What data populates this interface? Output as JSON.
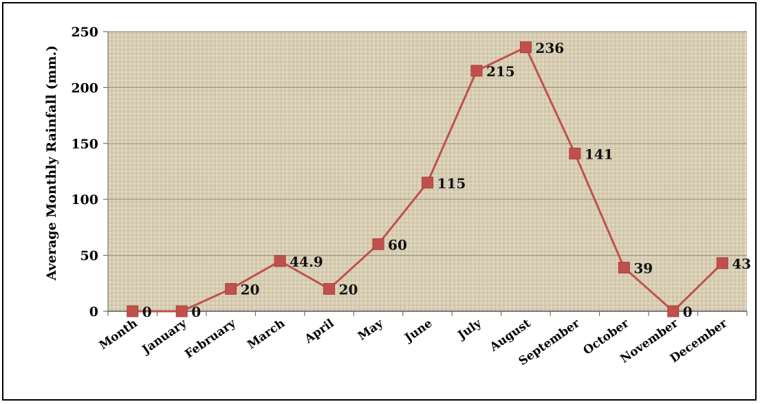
{
  "chart_data": {
    "type": "line",
    "title": "",
    "xlabel": "",
    "ylabel": "Average Monthly Rainfall (mm.)",
    "categories": [
      "Month",
      "January",
      "February",
      "March",
      "April",
      "May",
      "June",
      "July",
      "August",
      "September",
      "October",
      "November",
      "December"
    ],
    "series": [
      {
        "values": [
          0,
          0,
          20,
          44.9,
          20,
          60,
          115,
          215,
          236,
          141,
          39,
          0,
          43
        ],
        "data_labels": [
          "0",
          "0",
          "20",
          "44.9",
          "20",
          "60",
          "115",
          "215",
          "236",
          "141",
          "39",
          "0",
          "43"
        ]
      }
    ],
    "ylim": [
      0,
      250
    ],
    "yticks": [
      "0",
      "50",
      "100",
      "150",
      "200",
      "250"
    ],
    "grid": true,
    "legend": "none",
    "colors": {
      "line": "#c0504d",
      "marker": "#c0504d",
      "plot_background": "#d8cdb4",
      "gridline": "#a09880"
    }
  }
}
